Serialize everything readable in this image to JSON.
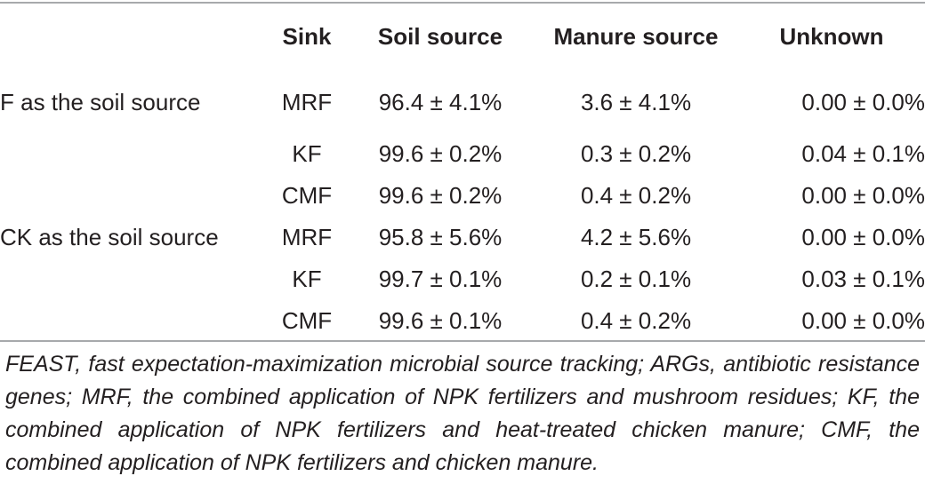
{
  "table": {
    "headers": {
      "label": "",
      "sink": "Sink",
      "soil": "Soil source",
      "manure": "Manure source",
      "unknown": "Unknown"
    },
    "rows": [
      {
        "group": "F as the soil source",
        "sink": "MRF",
        "soil": "96.4 ± 4.1%",
        "manure": "3.6 ± 4.1%",
        "unknown": "0.00 ± 0.0%"
      },
      {
        "group": "",
        "sink": "KF",
        "soil": "99.6 ± 0.2%",
        "manure": "0.3 ± 0.2%",
        "unknown": "0.04 ± 0.1%"
      },
      {
        "group": "",
        "sink": "CMF",
        "soil": "99.6 ± 0.2%",
        "manure": "0.4 ± 0.2%",
        "unknown": "0.00 ± 0.0%"
      },
      {
        "group": "CK as the soil source",
        "sink": "MRF",
        "soil": "95.8 ± 5.6%",
        "manure": "4.2 ± 5.6%",
        "unknown": "0.00 ± 0.0%"
      },
      {
        "group": "",
        "sink": "KF",
        "soil": "99.7 ± 0.1%",
        "manure": "0.2 ± 0.1%",
        "unknown": "0.03 ± 0.1%"
      },
      {
        "group": "",
        "sink": "CMF",
        "soil": "99.6 ± 0.1%",
        "manure": "0.4 ± 0.2%",
        "unknown": "0.00 ± 0.0%"
      }
    ]
  },
  "footnote": "FEAST, fast expectation-maximization microbial source tracking; ARGs, antibiotic resistance genes; MRF, the combined application of NPK fertilizers and mushroom residues; KF, the combined application of NPK fertilizers and heat-treated chicken manure; CMF, the combined application of NPK fertilizers and chicken manure."
}
